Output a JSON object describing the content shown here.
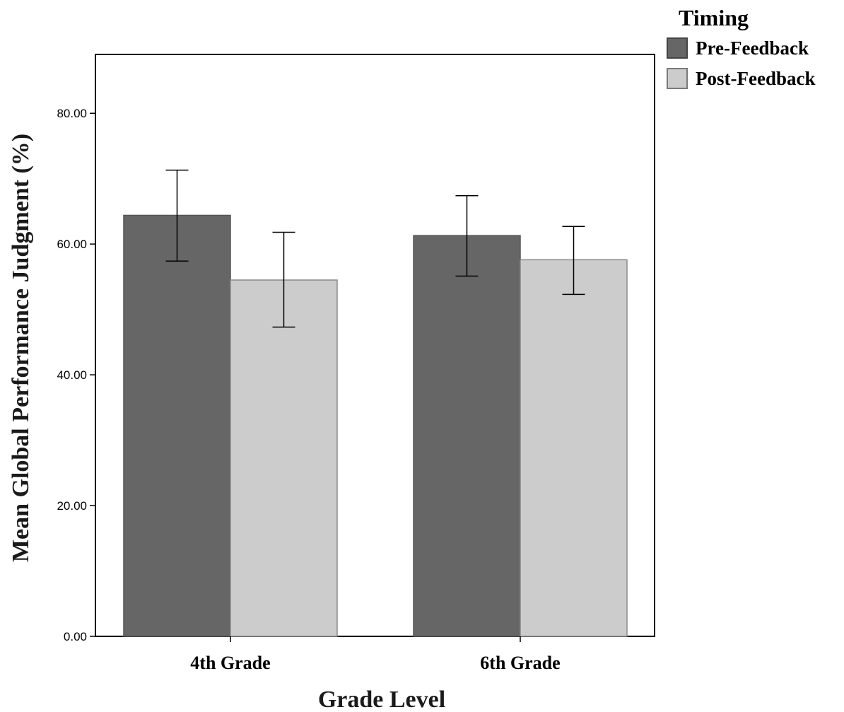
{
  "chart_data": {
    "type": "bar",
    "categories": [
      "4th Grade",
      "6th Grade"
    ],
    "series": [
      {
        "name": "Pre-Feedback",
        "values": [
          64.4,
          61.3
        ],
        "error_low": [
          57.4,
          55.1
        ],
        "error_high": [
          71.3,
          67.4
        ],
        "color": "#666666"
      },
      {
        "name": "Post-Feedback",
        "values": [
          54.5,
          57.6
        ],
        "error_low": [
          47.3,
          52.3
        ],
        "error_high": [
          61.8,
          62.7
        ],
        "color": "#cccccc"
      }
    ],
    "xlabel": "Grade Level",
    "ylabel": "Mean Global Performance Judgment (%)",
    "ylim": [
      0,
      89
    ],
    "yticks": [
      0,
      20,
      40,
      60,
      80
    ],
    "ytick_labels": [
      "0.00",
      "20.00",
      "40.00",
      "60.00",
      "80.00"
    ],
    "legend": {
      "title": "Timing",
      "position": "top-right outside"
    },
    "grid": false
  }
}
